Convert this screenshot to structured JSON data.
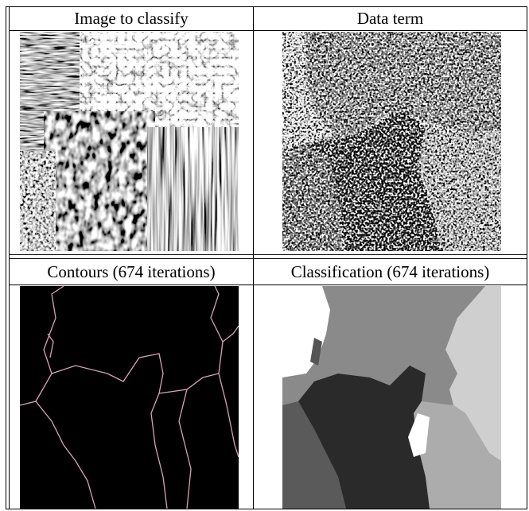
{
  "table": {
    "rows": [
      [
        "Image to classify",
        "Data term"
      ],
      [
        "Contours (674 iterations)",
        "Classification (674 iterations)"
      ]
    ]
  }
}
